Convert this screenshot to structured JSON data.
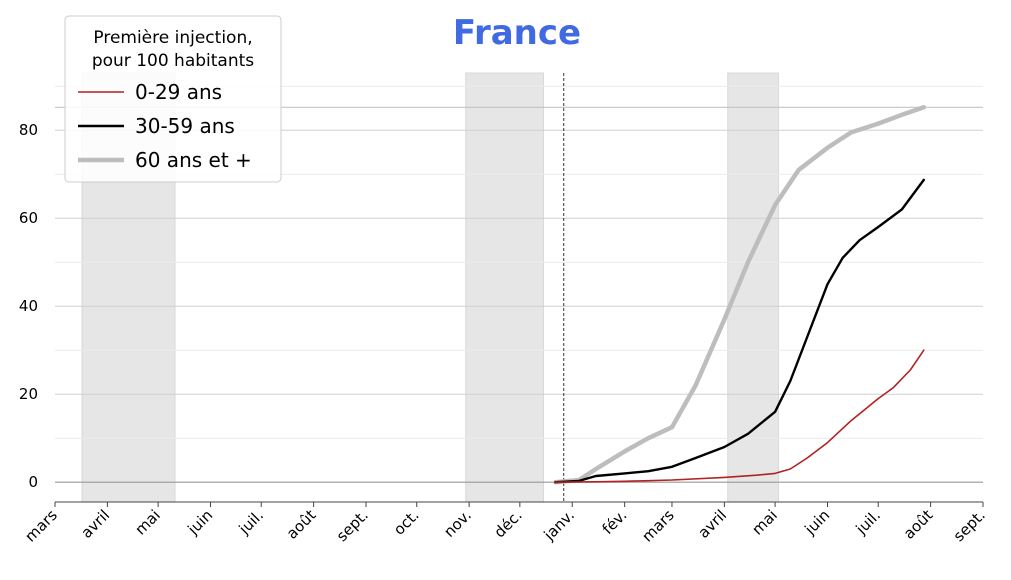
{
  "chart_data": {
    "type": "line",
    "title": "France",
    "colors": {
      "title": "#4169e1",
      "shade": "#e6e6e6",
      "grid_major": "#d0d0d0",
      "grid_minor": "#ececec"
    },
    "xlabel": "",
    "ylabel": "",
    "ylim": [
      -4.5,
      93
    ],
    "xlim": [
      "2020-03-01",
      "2021-09-01"
    ],
    "y_ticks": [
      0,
      20,
      40,
      60,
      80
    ],
    "x_ticks": [
      {
        "date": "2020-03-01",
        "label": "mars"
      },
      {
        "date": "2020-04-01",
        "label": "avril"
      },
      {
        "date": "2020-05-01",
        "label": "mai"
      },
      {
        "date": "2020-06-01",
        "label": "juin"
      },
      {
        "date": "2020-07-01",
        "label": "juil."
      },
      {
        "date": "2020-08-01",
        "label": "août"
      },
      {
        "date": "2020-09-01",
        "label": "sept."
      },
      {
        "date": "2020-10-01",
        "label": "oct."
      },
      {
        "date": "2020-11-01",
        "label": "nov."
      },
      {
        "date": "2020-12-01",
        "label": "déc."
      },
      {
        "date": "2021-01-01",
        "label": "janv."
      },
      {
        "date": "2021-02-01",
        "label": "fév."
      },
      {
        "date": "2021-03-01",
        "label": "mars"
      },
      {
        "date": "2021-04-01",
        "label": "avril"
      },
      {
        "date": "2021-05-01",
        "label": "mai"
      },
      {
        "date": "2021-06-01",
        "label": "juin"
      },
      {
        "date": "2021-07-01",
        "label": "juil."
      },
      {
        "date": "2021-08-01",
        "label": "août"
      },
      {
        "date": "2021-09-01",
        "label": "sept."
      }
    ],
    "shaded_periods": [
      {
        "start": "2020-03-17",
        "end": "2020-05-11"
      },
      {
        "start": "2020-10-30",
        "end": "2020-12-15"
      },
      {
        "start": "2021-04-03",
        "end": "2021-05-03"
      }
    ],
    "vline_date": "2020-12-27",
    "hline_value": 85.2,
    "legend": {
      "title": "Première injection,\npour 100 habitants",
      "position": "top-left"
    },
    "series": [
      {
        "name": "0-29 ans",
        "color": "#b22222",
        "width": 1.6,
        "points": [
          [
            "2020-12-22",
            0
          ],
          [
            "2021-01-15",
            0.1
          ],
          [
            "2021-02-01",
            0.2
          ],
          [
            "2021-03-01",
            0.5
          ],
          [
            "2021-04-01",
            1.1
          ],
          [
            "2021-04-20",
            1.6
          ],
          [
            "2021-05-01",
            2
          ],
          [
            "2021-05-10",
            3
          ],
          [
            "2021-05-20",
            5.5
          ],
          [
            "2021-06-01",
            9
          ],
          [
            "2021-06-15",
            14
          ],
          [
            "2021-07-01",
            19
          ],
          [
            "2021-07-10",
            21.5
          ],
          [
            "2021-07-20",
            25.5
          ],
          [
            "2021-07-28",
            30
          ]
        ]
      },
      {
        "name": "30-59 ans",
        "color": "#000000",
        "width": 2.4,
        "points": [
          [
            "2020-12-22",
            0
          ],
          [
            "2021-01-05",
            0.3
          ],
          [
            "2021-01-15",
            1.4
          ],
          [
            "2021-02-01",
            2
          ],
          [
            "2021-02-15",
            2.5
          ],
          [
            "2021-03-01",
            3.5
          ],
          [
            "2021-03-15",
            5.5
          ],
          [
            "2021-04-01",
            8
          ],
          [
            "2021-04-15",
            11
          ],
          [
            "2021-05-01",
            16
          ],
          [
            "2021-05-10",
            23
          ],
          [
            "2021-05-20",
            33
          ],
          [
            "2021-06-01",
            45
          ],
          [
            "2021-06-10",
            51
          ],
          [
            "2021-06-20",
            55
          ],
          [
            "2021-07-01",
            58
          ],
          [
            "2021-07-15",
            62
          ],
          [
            "2021-07-28",
            68.7
          ]
        ]
      },
      {
        "name": "60 ans et +",
        "color": "#bdbdbd",
        "width": 4.5,
        "points": [
          [
            "2020-12-22",
            0
          ],
          [
            "2021-01-05",
            0.5
          ],
          [
            "2021-01-15",
            3
          ],
          [
            "2021-02-01",
            7
          ],
          [
            "2021-02-15",
            10
          ],
          [
            "2021-03-01",
            12.5
          ],
          [
            "2021-03-15",
            22
          ],
          [
            "2021-04-01",
            37
          ],
          [
            "2021-04-15",
            50
          ],
          [
            "2021-05-01",
            63
          ],
          [
            "2021-05-15",
            71
          ],
          [
            "2021-06-01",
            76
          ],
          [
            "2021-06-15",
            79.5
          ],
          [
            "2021-07-01",
            81.5
          ],
          [
            "2021-07-15",
            83.5
          ],
          [
            "2021-07-28",
            85.2
          ]
        ]
      }
    ]
  }
}
